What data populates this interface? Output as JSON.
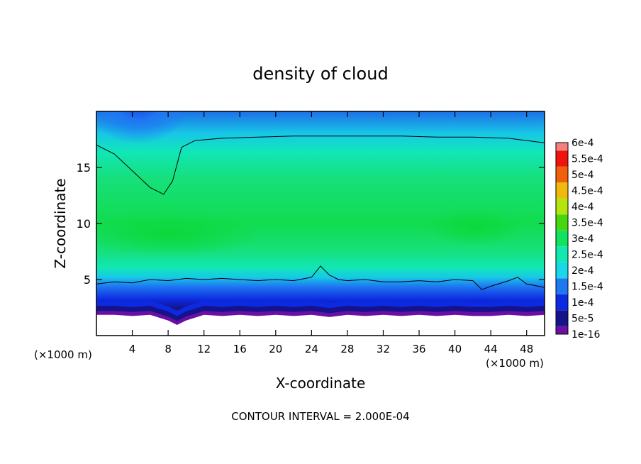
{
  "chart_data": {
    "type": "heatmap",
    "title": "density of cloud",
    "xlabel": "X-coordinate",
    "ylabel": "Z-coordinate",
    "x_units": "(×1000 m)",
    "x_units_right": "(×1000 m)",
    "xlim": [
      0,
      50
    ],
    "ylim": [
      0,
      20
    ],
    "x_ticks": [
      4,
      8,
      12,
      16,
      20,
      24,
      28,
      32,
      36,
      40,
      44,
      48
    ],
    "y_ticks": [
      5,
      10,
      15
    ],
    "contour_interval_text": "CONTOUR INTERVAL = 2.000E-04",
    "colorbar": {
      "labels": [
        "1e-16",
        "5e-5",
        "1e-4",
        "1.5e-4",
        "2e-4",
        "2.5e-4",
        "3e-4",
        "3.5e-4",
        "4e-4",
        "4.5e-4",
        "5e-4",
        "5.5e-4",
        "6e-4"
      ],
      "colors": [
        "#6a0fa6",
        "#16128a",
        "#0c2ae0",
        "#1f78f2",
        "#19d6e9",
        "#11e8b2",
        "#12e35e",
        "#47d712",
        "#b3e50e",
        "#f0ba0c",
        "#f1600a",
        "#f0140c",
        "#f67f7f"
      ]
    },
    "contour_top_z": [
      17.0,
      16.2,
      14.7,
      13.2,
      12.6,
      13.8,
      16.8,
      17.4,
      17.6,
      17.7,
      17.8,
      17.8,
      17.8,
      17.8,
      17.7,
      17.7,
      17.6,
      17.4,
      17.2
    ],
    "contour_top_x": [
      0,
      2,
      4,
      6,
      7.5,
      8.5,
      9.5,
      11,
      14,
      18,
      22,
      26,
      30,
      34,
      38,
      42,
      46,
      48,
      50
    ],
    "contour_bottom_x": [
      0,
      2,
      4,
      6,
      8,
      10,
      12,
      14,
      16,
      18,
      20,
      22,
      24,
      25,
      26,
      27,
      28,
      30,
      32,
      34,
      36,
      38,
      40,
      42,
      43,
      44,
      46,
      47,
      48,
      50
    ],
    "contour_bottom_z": [
      4.6,
      4.8,
      4.7,
      5.0,
      4.9,
      5.1,
      5.0,
      5.1,
      5.0,
      4.9,
      5.0,
      4.9,
      5.2,
      6.2,
      5.4,
      5.0,
      4.9,
      5.0,
      4.8,
      4.8,
      4.9,
      4.8,
      5.0,
      4.9,
      4.1,
      4.4,
      4.9,
      5.2,
      4.6,
      4.3
    ],
    "cloud_base_x": [
      0,
      2,
      4,
      6,
      8,
      9,
      10,
      12,
      14,
      16,
      18,
      20,
      22,
      24,
      26,
      28,
      30,
      32,
      34,
      36,
      38,
      40,
      42,
      44,
      46,
      48,
      50
    ],
    "cloud_base_z": [
      2.2,
      2.2,
      2.1,
      2.2,
      1.7,
      1.3,
      1.7,
      2.2,
      2.1,
      2.2,
      2.1,
      2.2,
      2.1,
      2.2,
      2.0,
      2.2,
      2.1,
      2.2,
      2.1,
      2.2,
      2.1,
      2.2,
      2.1,
      2.1,
      2.2,
      2.1,
      2.2
    ]
  }
}
